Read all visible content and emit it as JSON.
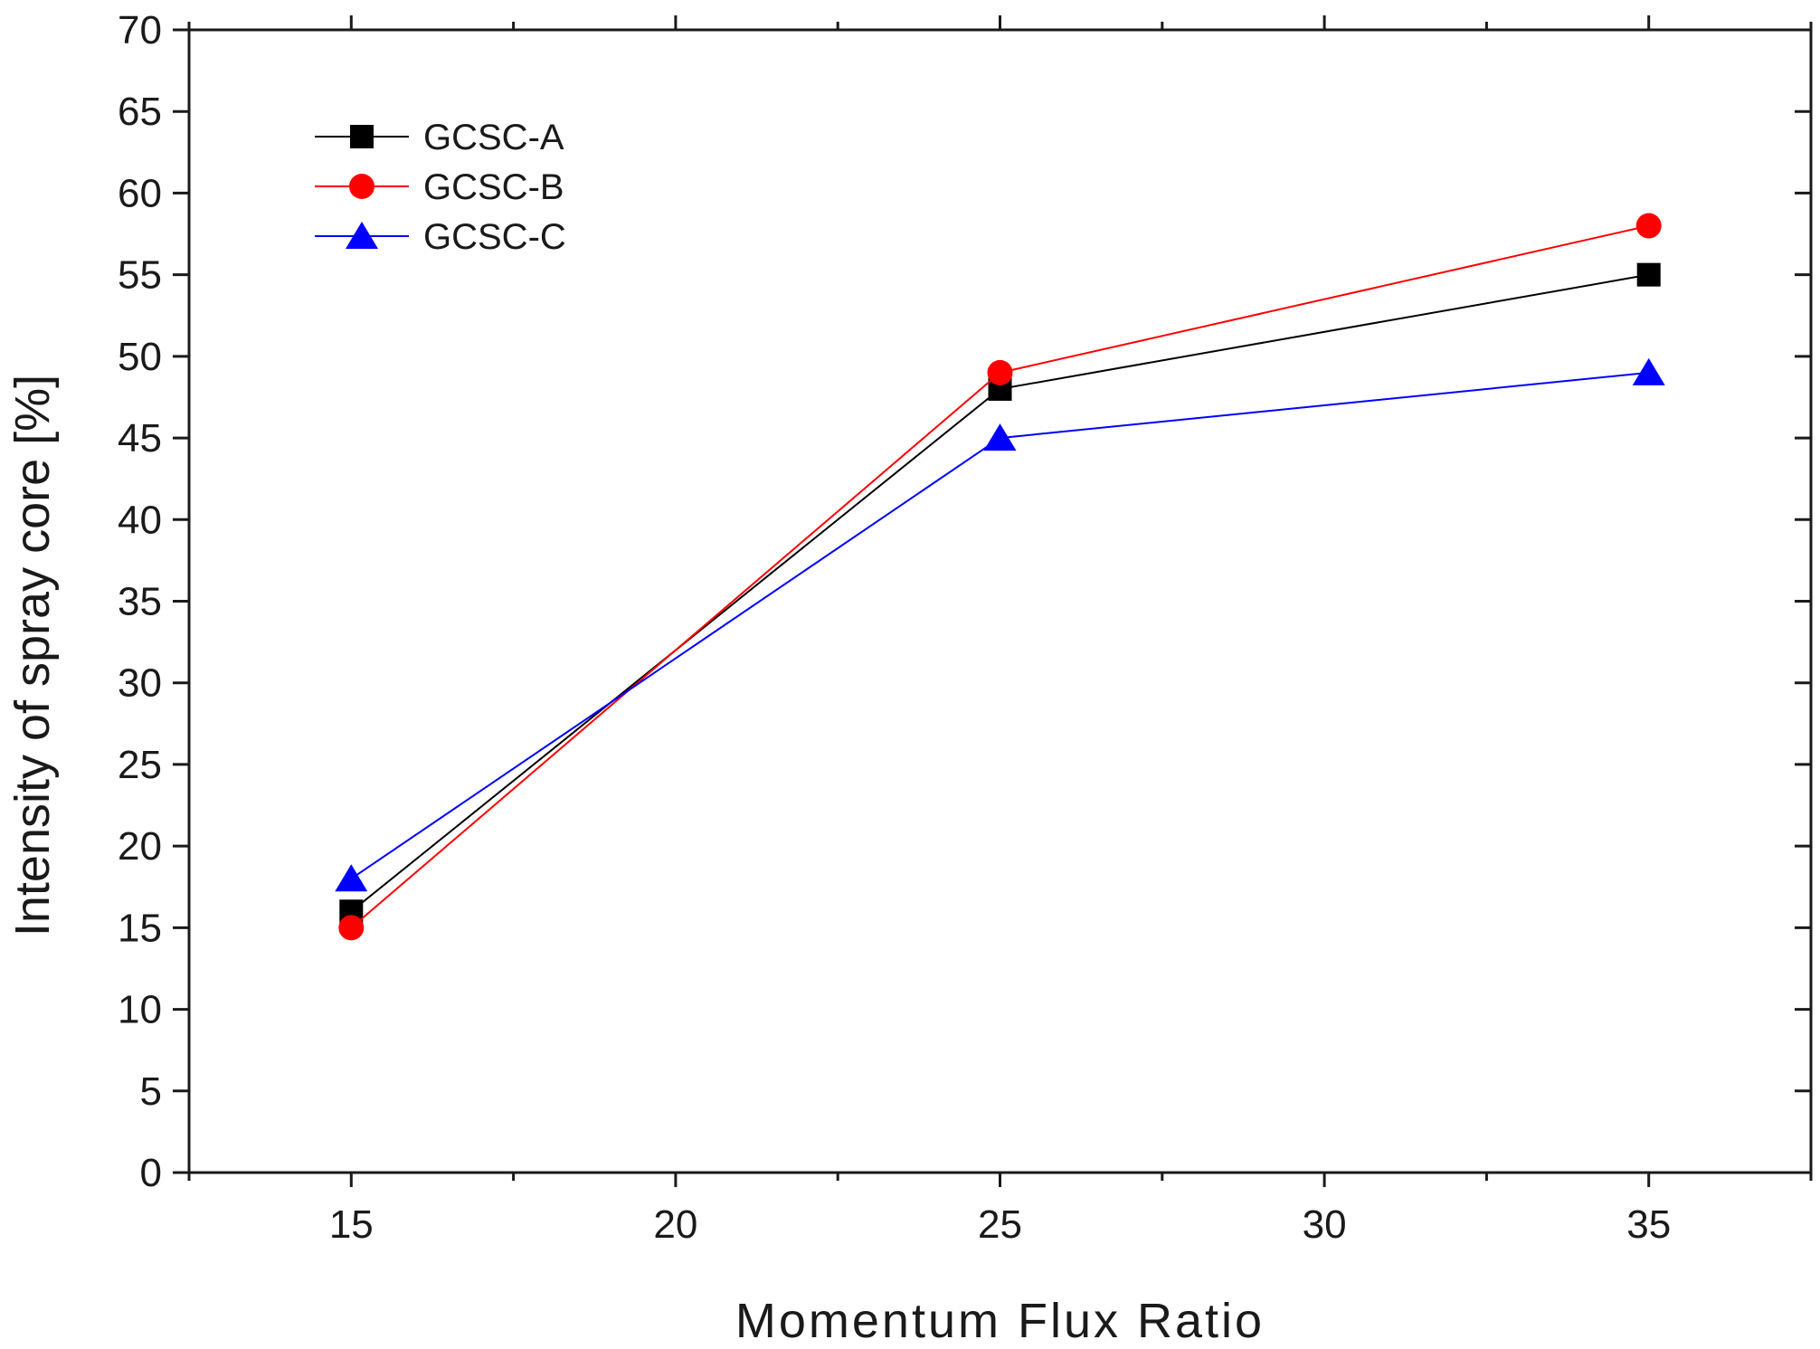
{
  "chart_data": {
    "type": "line",
    "title": "",
    "xlabel": "Momentum Flux Ratio",
    "ylabel": "Intensity of spray core [%]",
    "xlim": [
      12.5,
      37.5
    ],
    "ylim": [
      0,
      70
    ],
    "x_ticks": [
      15,
      20,
      25,
      30,
      35
    ],
    "y_ticks": [
      0,
      5,
      10,
      15,
      20,
      25,
      30,
      35,
      40,
      45,
      50,
      55,
      60,
      65,
      70
    ],
    "x": [
      15,
      25,
      35
    ],
    "grid": false,
    "legend_position": "top-left",
    "series": [
      {
        "name": "GCSC-A",
        "marker": "square",
        "color": "#000000",
        "values": [
          16,
          48,
          55
        ]
      },
      {
        "name": "GCSC-B",
        "marker": "circle",
        "color": "#ff0000",
        "values": [
          15,
          49,
          58
        ]
      },
      {
        "name": "GCSC-C",
        "marker": "triangle",
        "color": "#0000ff",
        "values": [
          18,
          45,
          49
        ]
      }
    ]
  }
}
